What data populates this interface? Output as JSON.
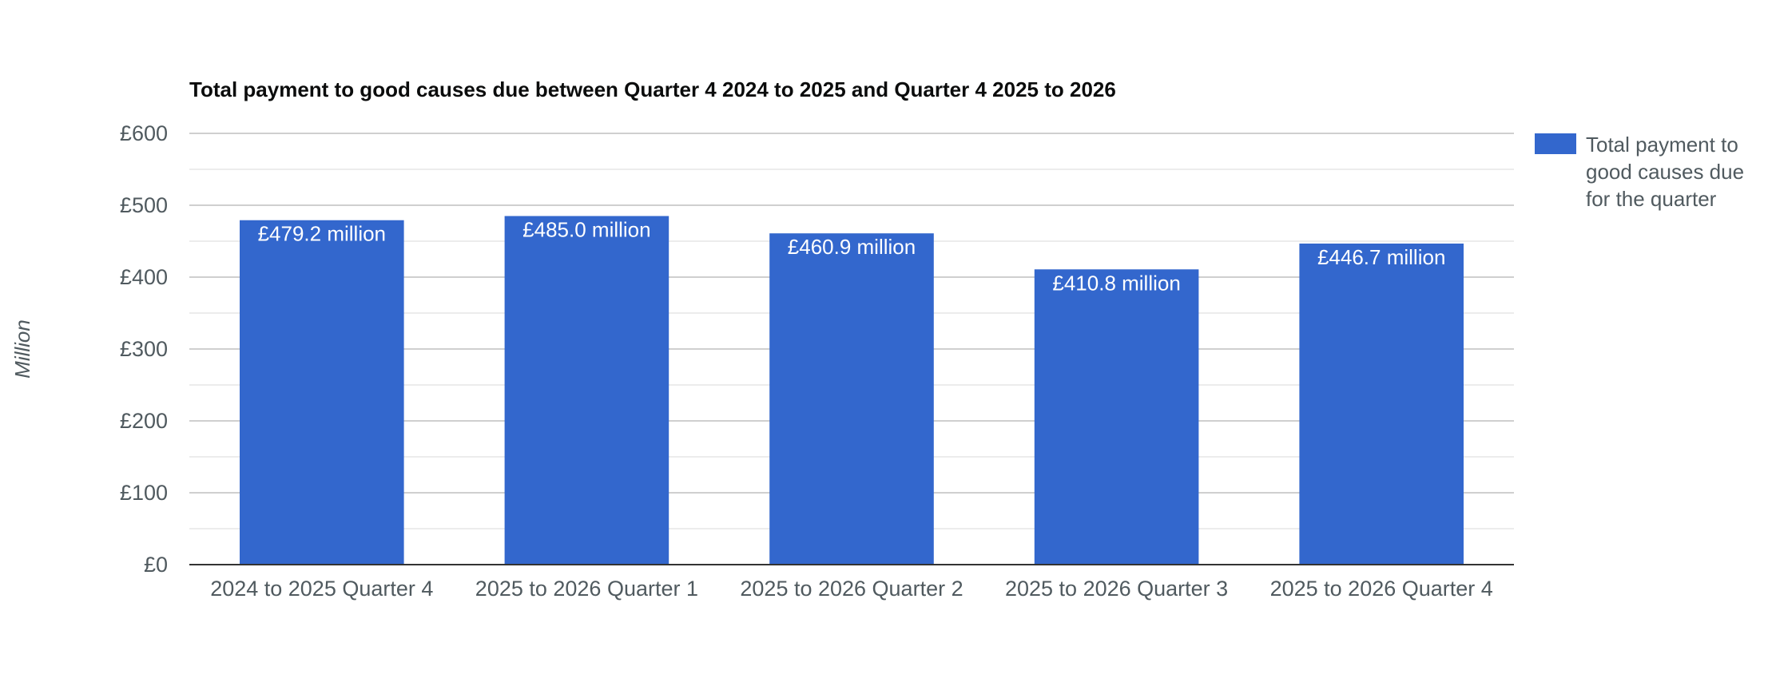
{
  "chart_data": {
    "type": "bar",
    "title": "Total payment to good causes due between Quarter 4 2024 to 2025 and Quarter 4 2025 to 2026",
    "ylabel": "Million",
    "xlabel": "",
    "categories": [
      "2024 to 2025 Quarter 4",
      "2025 to 2026 Quarter 1",
      "2025 to 2026 Quarter 2",
      "2025 to 2026 Quarter 3",
      "2025 to 2026 Quarter 4"
    ],
    "series": [
      {
        "name": "Total payment to good causes due for the quarter",
        "legend_lines": [
          "Total payment to",
          "good causes due",
          "for the quarter"
        ],
        "values": [
          479.2,
          485.0,
          460.9,
          410.8,
          446.7
        ],
        "data_labels": [
          "£479.2 million",
          "£485.0 million",
          "£460.9 million",
          "£410.8 million",
          "£446.7 million"
        ],
        "color": "#3367cd"
      }
    ],
    "ylim": [
      0,
      600
    ],
    "yticks": [
      0,
      100,
      200,
      300,
      400,
      500,
      600
    ],
    "ytick_labels": [
      "£0",
      "£100",
      "£200",
      "£300",
      "£400",
      "£500",
      "£600"
    ],
    "grid": true,
    "legend_position": "right"
  }
}
